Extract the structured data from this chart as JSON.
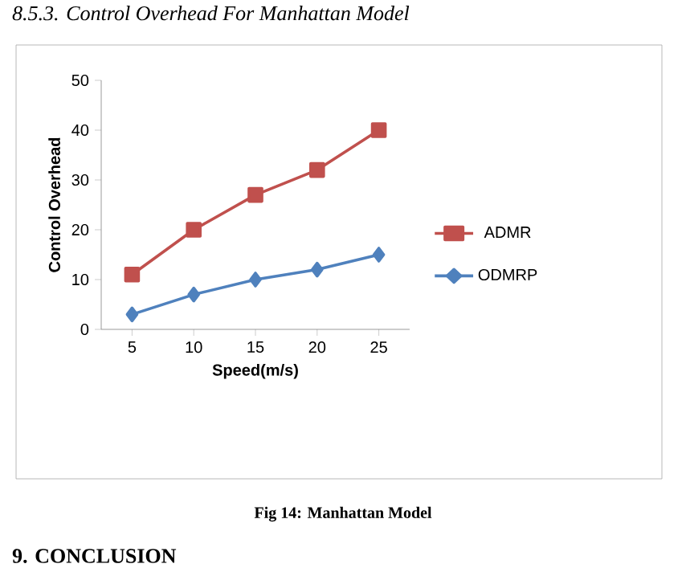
{
  "chart_data": {
    "type": "line",
    "title": "8.5.3. Control Overhead For Manhattan Model",
    "xlabel": "Speed(m/s)",
    "ylabel": "Control Overhead",
    "categories": [
      "5",
      "10",
      "15",
      "20",
      "25"
    ],
    "series": [
      {
        "name": "ADMR",
        "color": "#c0504d",
        "marker": "square",
        "values": [
          11,
          20,
          27,
          32,
          40
        ]
      },
      {
        "name": "ODMRP",
        "color": "#4f81bd",
        "marker": "diamond",
        "values": [
          3,
          7,
          10,
          12,
          15
        ]
      }
    ],
    "ylim": [
      0,
      50
    ],
    "yticks": [
      0,
      10,
      20,
      30,
      40,
      50
    ],
    "grid": false,
    "legend": "right",
    "annotations": [
      "Fig 14: Manhattan Model",
      "9. CONCLUSION"
    ]
  }
}
